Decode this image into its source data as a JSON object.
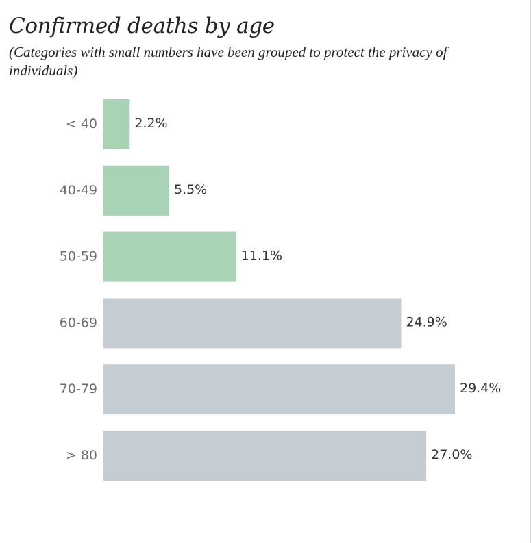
{
  "chart_data": {
    "type": "bar",
    "orientation": "horizontal",
    "title": "Confirmed deaths by age",
    "subtitle": "(Categories with small numbers have been grouped to protect the privacy of individuals)",
    "categories": [
      "< 40",
      "40-49",
      "50-59",
      "60-69",
      "70-79",
      "> 80"
    ],
    "values": [
      2.2,
      5.5,
      11.1,
      24.9,
      29.4,
      27.0
    ],
    "value_labels": [
      "2.2%",
      "5.5%",
      "11.1%",
      "24.9%",
      "29.4%",
      "27.0%"
    ],
    "bar_colors": [
      "#a9d3b5",
      "#a9d3b5",
      "#a9d3b5",
      "#c5cdd3",
      "#c5cdd3",
      "#c5cdd3"
    ],
    "xlim": [
      0,
      29.4
    ],
    "xlabel": "",
    "ylabel": "",
    "grid": false,
    "legend": "none"
  }
}
